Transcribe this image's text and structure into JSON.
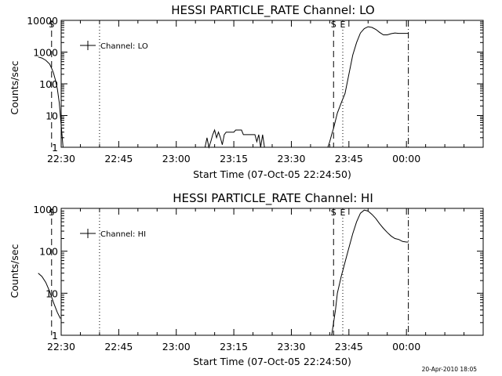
{
  "footer": {
    "timestamp": "20-Apr-2010 18:05"
  },
  "chart_data": [
    {
      "type": "line",
      "title": "HESSI PARTICLE_RATE Channel: LO",
      "xlabel": "Start Time (07-Oct-05 22:24:50)",
      "ylabel": "Counts/sec",
      "y_scale": "log",
      "ylim": [
        1,
        10000
      ],
      "xlim": [
        -10,
        100
      ],
      "x_units": "minutes after 22:40",
      "x_ticks": [
        {
          "x": -10,
          "label": "22:30"
        },
        {
          "x": 5,
          "label": "22:45"
        },
        {
          "x": 20,
          "label": "23:00"
        },
        {
          "x": 35,
          "label": "23:15"
        },
        {
          "x": 50,
          "label": "23:30"
        },
        {
          "x": 65,
          "label": "23:45"
        },
        {
          "x": 80,
          "label": "00:00"
        }
      ],
      "y_ticks": [
        {
          "y": 1,
          "label": "1"
        },
        {
          "y": 10,
          "label": "10"
        },
        {
          "y": 100,
          "label": "100"
        },
        {
          "y": 1000,
          "label": "1000"
        },
        {
          "y": 10000,
          "label": "10000"
        }
      ],
      "grid": false,
      "legend": {
        "position": "top-left",
        "entries": [
          "Channel: LO"
        ]
      },
      "markers": [
        {
          "label": "S",
          "x": -12.5,
          "style": "dash"
        },
        {
          "x": 0,
          "style": "dot"
        },
        {
          "label": "S",
          "x": 61,
          "style": "dash"
        },
        {
          "label": "E",
          "x": 63.4,
          "style": "dot"
        },
        {
          "x": 80.5,
          "style": "dashdot"
        }
      ],
      "series": [
        {
          "name": "Channel: LO",
          "points": [
            [
              [
                -16,
                700
              ],
              [
                -15,
                650
              ],
              [
                -14,
                550
              ],
              [
                -13,
                420
              ],
              [
                -12.5,
                310
              ],
              [
                -12,
                220
              ],
              [
                -11.5,
                130
              ],
              [
                -11,
                70
              ],
              [
                -10.5,
                25
              ],
              [
                -10,
                5
              ],
              [
                -9.5,
                1
              ]
            ],
            [
              [
                27.5,
                1
              ],
              [
                28,
                2
              ],
              [
                28.5,
                1
              ],
              [
                29,
                1.5
              ],
              [
                29.5,
                2.5
              ],
              [
                30,
                3.5
              ],
              [
                30.5,
                2
              ],
              [
                31,
                3
              ],
              [
                31.5,
                2
              ],
              [
                32,
                1.2
              ],
              [
                32.5,
                2.5
              ],
              [
                33,
                3
              ],
              [
                35,
                3
              ],
              [
                35.5,
                3.5
              ],
              [
                37,
                3.5
              ],
              [
                37.5,
                2.5
              ],
              [
                40.5,
                2.5
              ],
              [
                41,
                1.5
              ],
              [
                41.5,
                2.5
              ],
              [
                42,
                1
              ],
              [
                42.5,
                2.5
              ],
              [
                43,
                1
              ]
            ],
            [
              [
                59.5,
                1
              ],
              [
                60,
                1.5
              ],
              [
                60.5,
                2.5
              ],
              [
                61,
                4
              ],
              [
                62,
                12
              ],
              [
                63,
                25
              ],
              [
                64,
                50
              ],
              [
                65,
                200
              ],
              [
                66,
                800
              ],
              [
                67,
                2000
              ],
              [
                68,
                4000
              ],
              [
                69,
                5500
              ],
              [
                70,
                6300
              ],
              [
                71,
                6000
              ],
              [
                72,
                5200
              ],
              [
                73,
                4200
              ],
              [
                74,
                3500
              ],
              [
                75,
                3500
              ],
              [
                76,
                3800
              ],
              [
                77,
                4000
              ],
              [
                78,
                3900
              ],
              [
                79,
                3900
              ],
              [
                80.5,
                3900
              ]
            ]
          ]
        }
      ]
    },
    {
      "type": "line",
      "title": "HESSI PARTICLE_RATE Channel: HI",
      "xlabel": "Start Time (07-Oct-05 22:24:50)",
      "ylabel": "Counts/sec",
      "y_scale": "log",
      "ylim": [
        1,
        1000
      ],
      "xlim": [
        -10,
        100
      ],
      "x_units": "minutes after 22:40",
      "x_ticks": [
        {
          "x": -10,
          "label": "22:30"
        },
        {
          "x": 5,
          "label": "22:45"
        },
        {
          "x": 20,
          "label": "23:00"
        },
        {
          "x": 35,
          "label": "23:15"
        },
        {
          "x": 50,
          "label": "23:30"
        },
        {
          "x": 65,
          "label": "23:45"
        },
        {
          "x": 80,
          "label": "00:00"
        }
      ],
      "y_ticks": [
        {
          "y": 1,
          "label": "1"
        },
        {
          "y": 10,
          "label": "10"
        },
        {
          "y": 100,
          "label": "100"
        },
        {
          "y": 1000,
          "label": "1000"
        }
      ],
      "grid": false,
      "legend": {
        "position": "top-left",
        "entries": [
          "Channel: HI"
        ]
      },
      "markers": [
        {
          "label": "S",
          "x": -12.5,
          "style": "dash"
        },
        {
          "x": 0,
          "style": "dot"
        },
        {
          "label": "S",
          "x": 61,
          "style": "dash"
        },
        {
          "label": "E",
          "x": 63.4,
          "style": "dot"
        },
        {
          "x": 80.5,
          "style": "dashdot"
        }
      ],
      "series": [
        {
          "name": "Channel: HI",
          "points": [
            [
              [
                -16,
                30
              ],
              [
                -15,
                25
              ],
              [
                -14,
                18
              ],
              [
                -13,
                11
              ],
              [
                -12,
                6
              ],
              [
                -11,
                3.5
              ],
              [
                -10.2,
                2.5
              ]
            ],
            [
              [
                60.5,
                1
              ],
              [
                61,
                2
              ],
              [
                61.5,
                4
              ],
              [
                62,
                10
              ],
              [
                63,
                25
              ],
              [
                64,
                55
              ],
              [
                65,
                120
              ],
              [
                66,
                260
              ],
              [
                67,
                500
              ],
              [
                68,
                800
              ],
              [
                69,
                950
              ],
              [
                70,
                900
              ],
              [
                71,
                750
              ],
              [
                72,
                600
              ],
              [
                73,
                450
              ],
              [
                74,
                350
              ],
              [
                75,
                280
              ],
              [
                76,
                230
              ],
              [
                77,
                200
              ],
              [
                78,
                190
              ],
              [
                79,
                170
              ],
              [
                80,
                165
              ],
              [
                80.5,
                165
              ]
            ]
          ]
        }
      ]
    }
  ]
}
